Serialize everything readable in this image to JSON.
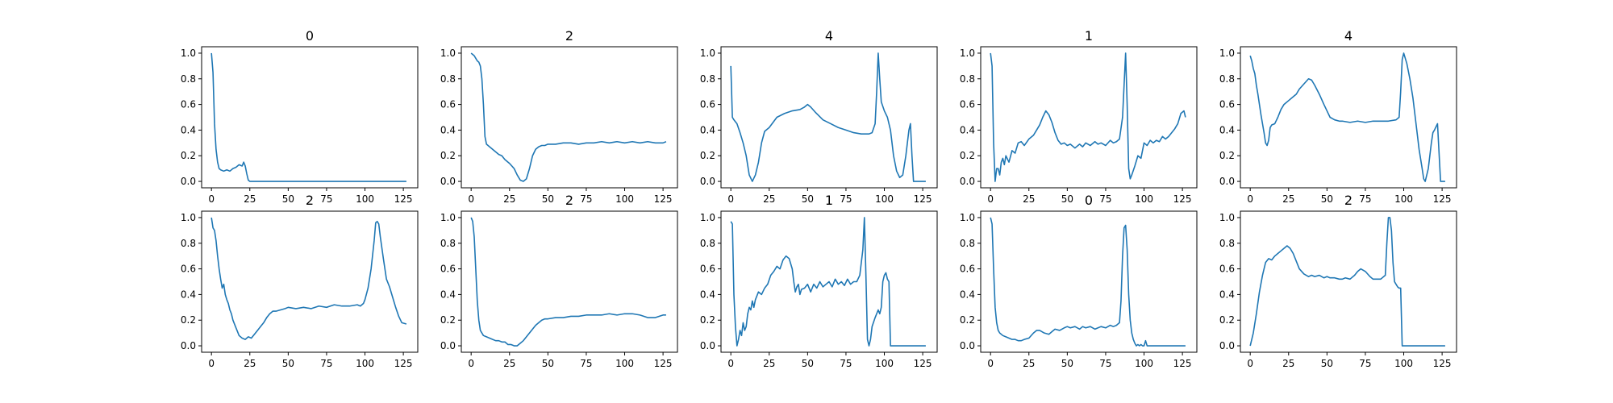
{
  "figure": {
    "line_color": "#1f77b4"
  },
  "chart_data": [
    {
      "type": "line",
      "title": "0",
      "xlim": [
        -6.4,
        134.4
      ],
      "ylim": [
        -0.05,
        1.05
      ],
      "xticks": [
        "0",
        "25",
        "50",
        "75",
        "100",
        "125"
      ],
      "yticks": [
        "0.0",
        "0.2",
        "0.4",
        "0.6",
        "0.8",
        "1.0"
      ],
      "x": [
        0,
        1,
        2,
        3,
        4,
        5,
        6,
        8,
        10,
        12,
        14,
        16,
        18,
        20,
        21,
        22,
        23,
        24,
        25,
        26,
        30,
        40,
        60,
        80,
        100,
        120,
        127
      ],
      "y": [
        1.0,
        0.85,
        0.45,
        0.25,
        0.15,
        0.1,
        0.09,
        0.08,
        0.09,
        0.08,
        0.1,
        0.11,
        0.13,
        0.12,
        0.15,
        0.12,
        0.06,
        0.01,
        0.0,
        0.0,
        0.0,
        0.0,
        0.0,
        0.0,
        0.0,
        0.0,
        0.0
      ]
    },
    {
      "type": "line",
      "title": "2",
      "xlim": [
        -6.4,
        134.4
      ],
      "ylim": [
        -0.05,
        1.05
      ],
      "xticks": [
        "0",
        "25",
        "50",
        "75",
        "100",
        "125"
      ],
      "yticks": [
        "0.0",
        "0.2",
        "0.4",
        "0.6",
        "0.8",
        "1.0"
      ],
      "x": [
        0,
        2,
        3,
        4,
        5,
        6,
        7,
        8,
        9,
        10,
        12,
        15,
        18,
        20,
        22,
        25,
        28,
        30,
        32,
        34,
        36,
        38,
        40,
        42,
        44,
        46,
        48,
        50,
        55,
        60,
        65,
        70,
        75,
        80,
        85,
        90,
        95,
        100,
        105,
        110,
        115,
        120,
        125,
        127
      ],
      "y": [
        1.0,
        0.98,
        0.96,
        0.94,
        0.93,
        0.9,
        0.8,
        0.6,
        0.35,
        0.29,
        0.27,
        0.24,
        0.21,
        0.2,
        0.17,
        0.14,
        0.1,
        0.05,
        0.01,
        0.0,
        0.02,
        0.1,
        0.2,
        0.25,
        0.27,
        0.28,
        0.28,
        0.29,
        0.29,
        0.3,
        0.3,
        0.29,
        0.3,
        0.3,
        0.31,
        0.3,
        0.31,
        0.3,
        0.31,
        0.3,
        0.31,
        0.3,
        0.3,
        0.31
      ]
    },
    {
      "type": "line",
      "title": "4",
      "xlim": [
        -6.4,
        134.4
      ],
      "ylim": [
        -0.05,
        1.05
      ],
      "xticks": [
        "0",
        "25",
        "50",
        "75",
        "100",
        "125"
      ],
      "yticks": [
        "0.0",
        "0.2",
        "0.4",
        "0.6",
        "0.8",
        "1.0"
      ],
      "x": [
        0,
        1,
        2,
        4,
        6,
        8,
        10,
        12,
        14,
        16,
        18,
        20,
        22,
        25,
        30,
        35,
        40,
        45,
        48,
        50,
        52,
        55,
        60,
        65,
        70,
        75,
        80,
        85,
        90,
        92,
        94,
        95,
        96,
        97,
        98,
        100,
        102,
        104,
        106,
        108,
        110,
        112,
        114,
        116,
        117,
        118,
        119,
        120,
        125,
        127
      ],
      "y": [
        0.9,
        0.5,
        0.48,
        0.45,
        0.38,
        0.3,
        0.2,
        0.05,
        0.0,
        0.05,
        0.15,
        0.3,
        0.39,
        0.42,
        0.5,
        0.53,
        0.55,
        0.56,
        0.58,
        0.6,
        0.58,
        0.54,
        0.48,
        0.45,
        0.42,
        0.4,
        0.38,
        0.37,
        0.37,
        0.38,
        0.45,
        0.7,
        1.0,
        0.8,
        0.62,
        0.55,
        0.5,
        0.4,
        0.2,
        0.08,
        0.03,
        0.05,
        0.2,
        0.4,
        0.45,
        0.2,
        0.0,
        0.0,
        0.0,
        0.0
      ]
    },
    {
      "type": "line",
      "title": "1",
      "xlim": [
        -6.4,
        134.4
      ],
      "ylim": [
        -0.05,
        1.05
      ],
      "xticks": [
        "0",
        "25",
        "50",
        "75",
        "100",
        "125"
      ],
      "yticks": [
        "0.0",
        "0.2",
        "0.4",
        "0.6",
        "0.8",
        "1.0"
      ],
      "x": [
        0,
        1,
        2,
        3,
        4,
        5,
        6,
        7,
        8,
        9,
        10,
        12,
        14,
        16,
        18,
        20,
        22,
        25,
        28,
        30,
        32,
        34,
        36,
        38,
        40,
        42,
        44,
        46,
        48,
        50,
        52,
        55,
        58,
        60,
        62,
        65,
        68,
        70,
        72,
        75,
        78,
        80,
        82,
        84,
        86,
        87,
        88,
        89,
        90,
        91,
        92,
        94,
        96,
        98,
        100,
        102,
        104,
        106,
        108,
        110,
        112,
        114,
        116,
        118,
        120,
        122,
        124,
        126,
        127
      ],
      "y": [
        1.0,
        0.9,
        0.3,
        0.0,
        0.1,
        0.1,
        0.05,
        0.15,
        0.18,
        0.13,
        0.2,
        0.15,
        0.24,
        0.22,
        0.3,
        0.31,
        0.28,
        0.33,
        0.36,
        0.4,
        0.44,
        0.5,
        0.55,
        0.52,
        0.46,
        0.38,
        0.32,
        0.29,
        0.3,
        0.28,
        0.29,
        0.26,
        0.29,
        0.27,
        0.3,
        0.28,
        0.31,
        0.29,
        0.3,
        0.28,
        0.32,
        0.3,
        0.31,
        0.33,
        0.5,
        0.75,
        1.0,
        0.6,
        0.1,
        0.02,
        0.05,
        0.12,
        0.2,
        0.18,
        0.3,
        0.28,
        0.32,
        0.3,
        0.32,
        0.31,
        0.35,
        0.33,
        0.35,
        0.38,
        0.41,
        0.45,
        0.53,
        0.55,
        0.5
      ]
    },
    {
      "type": "line",
      "title": "4",
      "xlim": [
        -6.4,
        134.4
      ],
      "ylim": [
        -0.05,
        1.05
      ],
      "xticks": [
        "0",
        "25",
        "50",
        "75",
        "100",
        "125"
      ],
      "yticks": [
        "0.0",
        "0.2",
        "0.4",
        "0.6",
        "0.8",
        "1.0"
      ],
      "x": [
        0,
        1,
        2,
        3,
        4,
        5,
        6,
        7,
        8,
        9,
        10,
        11,
        12,
        13,
        14,
        16,
        18,
        20,
        22,
        25,
        28,
        30,
        32,
        35,
        38,
        40,
        42,
        45,
        48,
        50,
        52,
        55,
        58,
        60,
        65,
        70,
        75,
        80,
        85,
        90,
        95,
        97,
        98,
        99,
        100,
        102,
        104,
        106,
        108,
        110,
        112,
        113,
        114,
        116,
        118,
        119,
        120,
        122,
        124,
        127
      ],
      "y": [
        0.98,
        0.94,
        0.88,
        0.84,
        0.75,
        0.68,
        0.6,
        0.52,
        0.45,
        0.38,
        0.3,
        0.28,
        0.32,
        0.42,
        0.44,
        0.45,
        0.5,
        0.56,
        0.6,
        0.63,
        0.66,
        0.68,
        0.72,
        0.76,
        0.8,
        0.79,
        0.75,
        0.68,
        0.6,
        0.55,
        0.5,
        0.48,
        0.47,
        0.47,
        0.46,
        0.47,
        0.46,
        0.47,
        0.47,
        0.47,
        0.48,
        0.5,
        0.7,
        0.95,
        1.0,
        0.92,
        0.8,
        0.65,
        0.45,
        0.25,
        0.1,
        0.02,
        0.0,
        0.1,
        0.3,
        0.38,
        0.4,
        0.45,
        0.0,
        0.0
      ]
    },
    {
      "type": "line",
      "title": "2",
      "xlim": [
        -6.4,
        134.4
      ],
      "ylim": [
        -0.05,
        1.05
      ],
      "xticks": [
        "0",
        "25",
        "50",
        "75",
        "100",
        "125"
      ],
      "yticks": [
        "0.0",
        "0.2",
        "0.4",
        "0.6",
        "0.8",
        "1.0"
      ],
      "x": [
        0,
        1,
        2,
        3,
        4,
        5,
        6,
        7,
        8,
        9,
        10,
        11,
        12,
        13,
        14,
        16,
        18,
        20,
        22,
        24,
        26,
        28,
        30,
        32,
        34,
        36,
        38,
        40,
        42,
        45,
        48,
        50,
        55,
        60,
        65,
        70,
        75,
        80,
        85,
        90,
        95,
        97,
        99,
        100,
        102,
        104,
        106,
        107,
        108,
        109,
        110,
        112,
        114,
        116,
        118,
        120,
        122,
        124,
        127
      ],
      "y": [
        1.0,
        0.92,
        0.9,
        0.82,
        0.7,
        0.6,
        0.52,
        0.45,
        0.48,
        0.4,
        0.36,
        0.33,
        0.28,
        0.25,
        0.2,
        0.14,
        0.08,
        0.06,
        0.05,
        0.07,
        0.06,
        0.09,
        0.12,
        0.15,
        0.18,
        0.22,
        0.25,
        0.27,
        0.27,
        0.28,
        0.29,
        0.3,
        0.29,
        0.3,
        0.29,
        0.31,
        0.3,
        0.32,
        0.31,
        0.31,
        0.32,
        0.31,
        0.33,
        0.36,
        0.45,
        0.6,
        0.82,
        0.96,
        0.97,
        0.95,
        0.85,
        0.68,
        0.52,
        0.46,
        0.38,
        0.3,
        0.23,
        0.18,
        0.17
      ]
    },
    {
      "type": "line",
      "title": "2",
      "xlim": [
        -6.4,
        134.4
      ],
      "ylim": [
        -0.05,
        1.05
      ],
      "xticks": [
        "0",
        "25",
        "50",
        "75",
        "100",
        "125"
      ],
      "yticks": [
        "0.0",
        "0.2",
        "0.4",
        "0.6",
        "0.8",
        "1.0"
      ],
      "x": [
        0,
        1,
        2,
        3,
        4,
        5,
        6,
        8,
        10,
        12,
        14,
        16,
        18,
        20,
        22,
        24,
        26,
        28,
        30,
        32,
        34,
        36,
        38,
        40,
        42,
        44,
        46,
        48,
        50,
        55,
        60,
        65,
        70,
        75,
        80,
        85,
        90,
        95,
        100,
        105,
        110,
        115,
        120,
        125,
        127
      ],
      "y": [
        1.0,
        0.97,
        0.85,
        0.6,
        0.35,
        0.2,
        0.12,
        0.08,
        0.07,
        0.06,
        0.05,
        0.04,
        0.04,
        0.03,
        0.03,
        0.01,
        0.01,
        0.0,
        0.0,
        0.02,
        0.04,
        0.07,
        0.1,
        0.13,
        0.16,
        0.18,
        0.2,
        0.21,
        0.21,
        0.22,
        0.22,
        0.23,
        0.23,
        0.24,
        0.24,
        0.24,
        0.25,
        0.24,
        0.25,
        0.25,
        0.24,
        0.22,
        0.22,
        0.24,
        0.24
      ]
    },
    {
      "type": "line",
      "title": "1",
      "xlim": [
        -6.4,
        134.4
      ],
      "ylim": [
        -0.05,
        1.05
      ],
      "xticks": [
        "0",
        "25",
        "50",
        "75",
        "100",
        "125"
      ],
      "yticks": [
        "0.0",
        "0.2",
        "0.4",
        "0.6",
        "0.8",
        "1.0"
      ],
      "x": [
        0,
        1,
        2,
        3,
        4,
        5,
        6,
        7,
        8,
        9,
        10,
        11,
        12,
        13,
        14,
        15,
        16,
        18,
        20,
        22,
        24,
        26,
        28,
        30,
        32,
        34,
        36,
        38,
        40,
        41,
        42,
        43,
        44,
        45,
        46,
        48,
        50,
        52,
        54,
        56,
        58,
        60,
        62,
        64,
        66,
        68,
        70,
        72,
        74,
        76,
        78,
        80,
        82,
        84,
        86,
        87,
        88,
        89,
        90,
        91,
        92,
        94,
        96,
        97,
        98,
        99,
        100,
        101,
        102,
        103,
        104,
        105,
        110,
        120,
        127
      ],
      "y": [
        0.97,
        0.95,
        0.4,
        0.15,
        0.0,
        0.05,
        0.12,
        0.08,
        0.18,
        0.12,
        0.15,
        0.25,
        0.3,
        0.28,
        0.35,
        0.3,
        0.36,
        0.42,
        0.4,
        0.45,
        0.48,
        0.55,
        0.58,
        0.62,
        0.6,
        0.67,
        0.7,
        0.68,
        0.6,
        0.5,
        0.42,
        0.46,
        0.48,
        0.4,
        0.44,
        0.45,
        0.48,
        0.42,
        0.48,
        0.45,
        0.5,
        0.46,
        0.48,
        0.5,
        0.46,
        0.52,
        0.48,
        0.5,
        0.47,
        0.52,
        0.48,
        0.5,
        0.5,
        0.55,
        0.75,
        1.0,
        0.55,
        0.05,
        0.0,
        0.05,
        0.15,
        0.22,
        0.28,
        0.25,
        0.3,
        0.5,
        0.55,
        0.57,
        0.52,
        0.5,
        0.0,
        0.0,
        0.0,
        0.0,
        0.0
      ]
    },
    {
      "type": "line",
      "title": "0",
      "xlim": [
        -6.4,
        134.4
      ],
      "ylim": [
        -0.05,
        1.05
      ],
      "xticks": [
        "0",
        "25",
        "50",
        "75",
        "100",
        "125"
      ],
      "yticks": [
        "0.0",
        "0.2",
        "0.4",
        "0.6",
        "0.8",
        "1.0"
      ],
      "x": [
        0,
        1,
        2,
        3,
        4,
        5,
        6,
        8,
        10,
        12,
        14,
        16,
        18,
        20,
        22,
        25,
        28,
        30,
        32,
        35,
        38,
        40,
        42,
        45,
        48,
        50,
        52,
        55,
        58,
        60,
        62,
        65,
        68,
        70,
        72,
        75,
        78,
        80,
        82,
        84,
        85,
        86,
        87,
        88,
        89,
        90,
        91,
        92,
        93,
        94,
        95,
        96,
        97,
        98,
        99,
        100,
        101,
        102,
        103,
        104,
        105,
        110,
        120,
        127
      ],
      "y": [
        1.0,
        0.95,
        0.6,
        0.3,
        0.18,
        0.12,
        0.1,
        0.08,
        0.07,
        0.06,
        0.05,
        0.05,
        0.04,
        0.04,
        0.05,
        0.06,
        0.1,
        0.12,
        0.12,
        0.1,
        0.09,
        0.11,
        0.13,
        0.12,
        0.14,
        0.15,
        0.14,
        0.15,
        0.13,
        0.15,
        0.14,
        0.15,
        0.13,
        0.14,
        0.15,
        0.14,
        0.16,
        0.15,
        0.16,
        0.18,
        0.35,
        0.7,
        0.92,
        0.94,
        0.75,
        0.4,
        0.2,
        0.1,
        0.05,
        0.02,
        0.0,
        0.01,
        0.0,
        0.01,
        0.0,
        0.0,
        0.04,
        0.0,
        0.0,
        0.0,
        0.0,
        0.0,
        0.0,
        0.0
      ]
    },
    {
      "type": "line",
      "title": "2",
      "xlim": [
        -6.4,
        134.4
      ],
      "ylim": [
        -0.05,
        1.05
      ],
      "xticks": [
        "0",
        "25",
        "50",
        "75",
        "100",
        "125"
      ],
      "yticks": [
        "0.0",
        "0.2",
        "0.4",
        "0.6",
        "0.8",
        "1.0"
      ],
      "x": [
        0,
        2,
        4,
        6,
        8,
        10,
        12,
        14,
        16,
        18,
        20,
        22,
        24,
        26,
        28,
        30,
        32,
        35,
        38,
        40,
        42,
        45,
        48,
        50,
        52,
        55,
        58,
        60,
        62,
        65,
        68,
        70,
        72,
        75,
        78,
        80,
        82,
        85,
        88,
        89,
        90,
        91,
        92,
        93,
        94,
        95,
        96,
        97,
        98,
        99,
        100,
        101,
        102,
        105,
        110,
        120,
        127
      ],
      "y": [
        0.0,
        0.1,
        0.25,
        0.42,
        0.55,
        0.65,
        0.68,
        0.67,
        0.7,
        0.72,
        0.74,
        0.76,
        0.78,
        0.76,
        0.72,
        0.66,
        0.6,
        0.56,
        0.54,
        0.55,
        0.54,
        0.55,
        0.53,
        0.54,
        0.53,
        0.53,
        0.52,
        0.52,
        0.53,
        0.52,
        0.55,
        0.58,
        0.6,
        0.58,
        0.54,
        0.52,
        0.52,
        0.52,
        0.55,
        0.8,
        1.0,
        1.0,
        0.9,
        0.65,
        0.5,
        0.48,
        0.46,
        0.45,
        0.45,
        0.0,
        0.0,
        0.0,
        0.0,
        0.0,
        0.0,
        0.0,
        0.0
      ]
    }
  ]
}
